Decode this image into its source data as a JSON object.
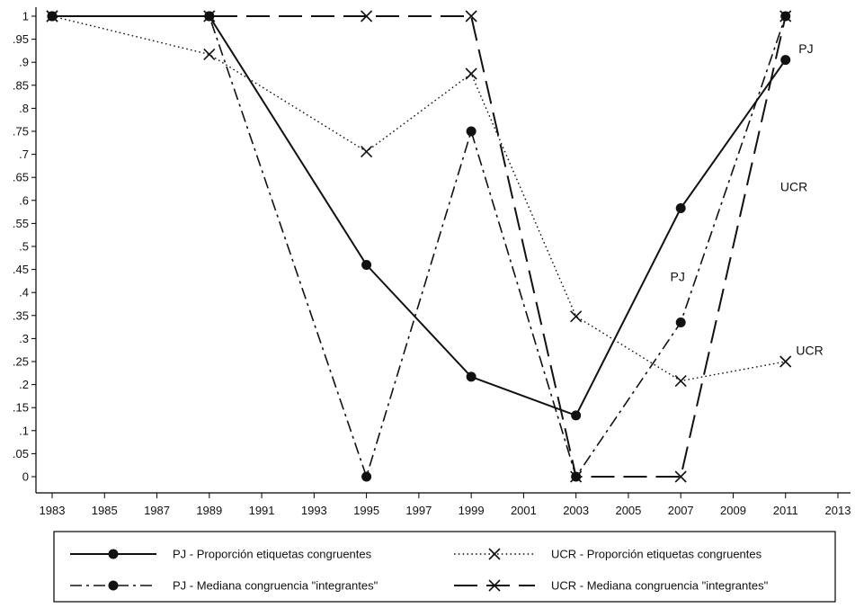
{
  "chart_data": {
    "type": "line",
    "title": "",
    "xlabel": "",
    "ylabel": "",
    "xlim": [
      1983,
      2013
    ],
    "ylim": [
      0,
      1
    ],
    "x_ticks": [
      "1983",
      "1985",
      "1987",
      "1989",
      "1991",
      "1993",
      "1995",
      "1997",
      "1999",
      "2001",
      "2003",
      "2005",
      "2007",
      "2009",
      "2011",
      "2013"
    ],
    "y_ticks": [
      "0",
      ".05",
      ".1",
      ".15",
      ".2",
      ".25",
      ".3",
      ".35",
      ".4",
      ".45",
      ".5",
      ".55",
      ".6",
      ".65",
      ".7",
      ".75",
      ".8",
      ".85",
      ".9",
      ".95",
      "1"
    ],
    "grid": false,
    "legend_position": "bottom",
    "series": [
      {
        "name": "PJ - Proporción etiquetas congruentes",
        "line_style": "solid",
        "marker": "circle",
        "x": [
          1983,
          1989,
          1995,
          1999,
          2003,
          2007,
          2011
        ],
        "y": [
          1,
          1,
          0.46,
          0.217,
          0.133,
          0.583,
          0.905
        ]
      },
      {
        "name": "UCR - Proporción etiquetas congruentes",
        "line_style": "dotted",
        "marker": "x",
        "x": [
          1983,
          1989,
          1995,
          1999,
          2003,
          2007,
          2011
        ],
        "y": [
          1,
          0.917,
          0.706,
          0.875,
          0.348,
          0.208,
          0.25
        ]
      },
      {
        "name": "PJ - Mediana congruencia \"integrantes\"",
        "line_style": "dashdot",
        "marker": "circle",
        "x": [
          1983,
          1989,
          1995,
          1999,
          2003,
          2007,
          2011
        ],
        "y": [
          1,
          1,
          0,
          0.75,
          0,
          0.335,
          1
        ]
      },
      {
        "name": "UCR - Mediana congruencia \"integrantes\"",
        "line_style": "longdash",
        "marker": "x",
        "x": [
          1983,
          1989,
          1995,
          1999,
          2003,
          2007,
          2011
        ],
        "y": [
          1,
          1,
          1,
          1,
          0,
          0,
          1
        ]
      }
    ],
    "annotations": [
      {
        "text": "PJ",
        "x": 2011.5,
        "y": 0.92
      },
      {
        "text": "UCR",
        "x": 2010.8,
        "y": 0.62
      },
      {
        "text": "PJ",
        "x": 2006.6,
        "y": 0.425
      },
      {
        "text": "UCR",
        "x": 2011.4,
        "y": 0.265
      }
    ]
  }
}
